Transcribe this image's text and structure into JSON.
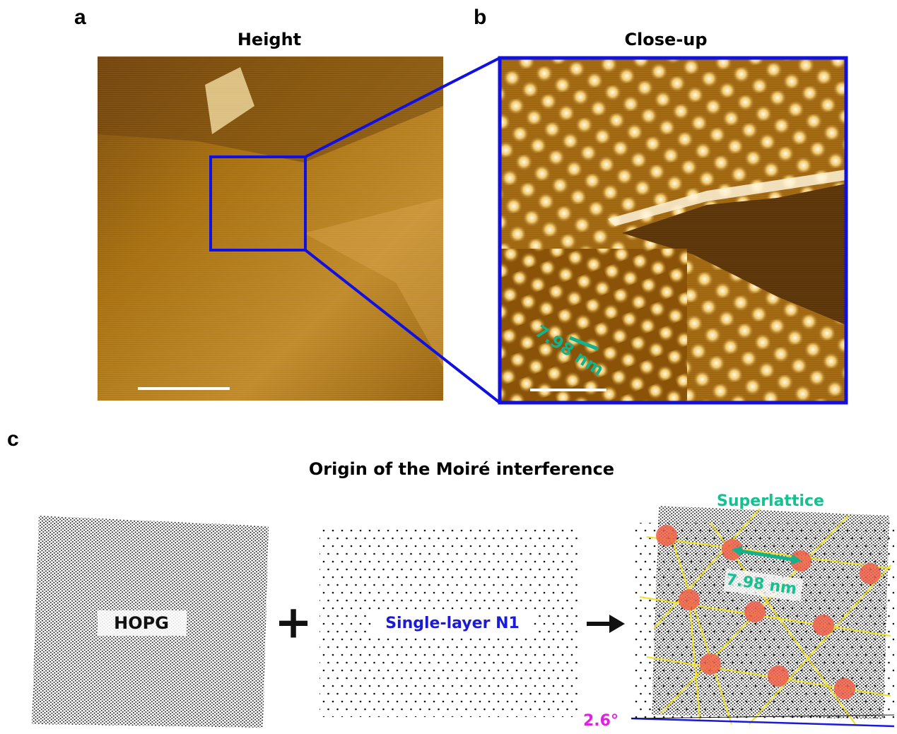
{
  "panels": {
    "a": {
      "label": "a",
      "title": "Height"
    },
    "b": {
      "label": "b",
      "title": "Close-up",
      "inset_label": "7.98 nm"
    },
    "c": {
      "label": "c",
      "title": "Origin of the Moiré interference",
      "hopg": "HOPG",
      "plus": "+",
      "n1": "Single-layer N1",
      "superlattice": "Superlattice",
      "spacing": "7.98 nm",
      "angle": "2.6°"
    }
  }
}
